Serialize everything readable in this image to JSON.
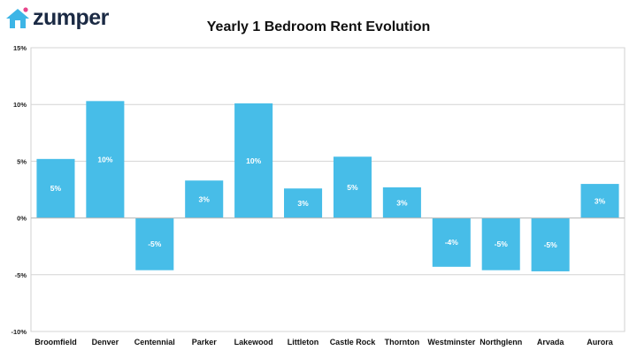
{
  "brand": {
    "name": "zumper",
    "icon": "house-icon",
    "color": "#3db5e6"
  },
  "chart_data": {
    "type": "bar",
    "title": "Yearly 1 Bedroom Rent Evolution",
    "categories": [
      "Broomfield",
      "Denver",
      "Centennial",
      "Parker",
      "Lakewood",
      "Littleton",
      "Castle Rock",
      "Thornton",
      "Westminster",
      "Northglenn",
      "Arvada",
      "Aurora"
    ],
    "values": [
      5.2,
      10.3,
      -4.6,
      3.3,
      10.1,
      2.6,
      5.4,
      2.7,
      -4.3,
      -4.6,
      -4.7,
      3.0
    ],
    "data_labels": [
      "5%",
      "10%",
      "-5%",
      "3%",
      "10%",
      "3%",
      "5%",
      "3%",
      "-4%",
      "-5%",
      "-5%",
      "3%"
    ],
    "ylim": [
      -10,
      15
    ],
    "yticks": [
      15,
      10,
      5,
      0,
      -5,
      -10
    ],
    "ytick_labels": [
      "15%",
      "10%",
      "5%",
      "0%",
      "-5%",
      "-10%"
    ],
    "grid": true,
    "bar_color": "#47bde8",
    "xlabel": "",
    "ylabel": ""
  }
}
